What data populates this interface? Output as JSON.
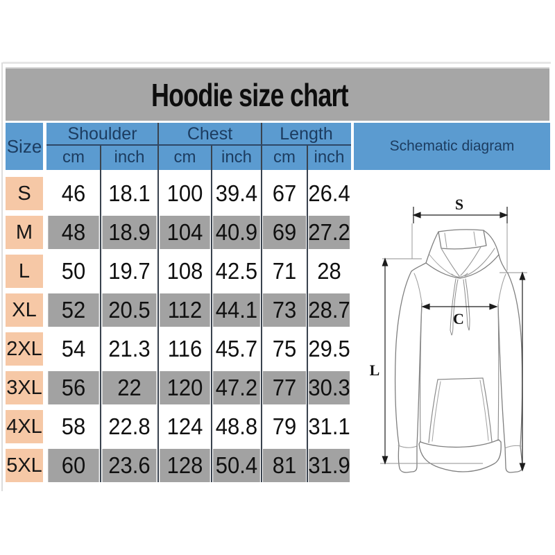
{
  "title": "Hoodie size chart",
  "table": {
    "size_header": "Size",
    "schematic_header": "Schematic diagram",
    "groups": [
      {
        "label": "Shoulder",
        "units": [
          "cm",
          "inch"
        ]
      },
      {
        "label": "Chest",
        "units": [
          "cm",
          "inch"
        ]
      },
      {
        "label": "Length",
        "units": [
          "cm",
          "inch"
        ]
      }
    ],
    "rows": [
      {
        "size": "S",
        "values": [
          "46",
          "18.1",
          "100",
          "39.4",
          "67",
          "26.4"
        ]
      },
      {
        "size": "M",
        "values": [
          "48",
          "18.9",
          "104",
          "40.9",
          "69",
          "27.2"
        ]
      },
      {
        "size": "L",
        "values": [
          "50",
          "19.7",
          "108",
          "42.5",
          "71",
          "28"
        ]
      },
      {
        "size": "XL",
        "values": [
          "52",
          "20.5",
          "112",
          "44.1",
          "73",
          "28.7"
        ]
      },
      {
        "size": "2XL",
        "values": [
          "54",
          "21.3",
          "116",
          "45.7",
          "75",
          "29.5"
        ]
      },
      {
        "size": "3XL",
        "values": [
          "56",
          "22",
          "120",
          "47.2",
          "77",
          "30.3"
        ]
      },
      {
        "size": "4XL",
        "values": [
          "58",
          "22.8",
          "124",
          "48.8",
          "79",
          "31.1"
        ]
      },
      {
        "size": "5XL",
        "values": [
          "60",
          "23.6",
          "128",
          "50.4",
          "81",
          "31.9"
        ]
      }
    ]
  },
  "diagram": {
    "shoulder_label": "S",
    "chest_label": "C",
    "length_label": "L"
  },
  "chart_data": {
    "type": "table",
    "title": "Hoodie size chart",
    "columns": [
      "Size",
      "Shoulder cm",
      "Shoulder inch",
      "Chest cm",
      "Chest inch",
      "Length cm",
      "Length inch"
    ],
    "rows": [
      [
        "S",
        46,
        18.1,
        100,
        39.4,
        67,
        26.4
      ],
      [
        "M",
        48,
        18.9,
        104,
        40.9,
        69,
        27.2
      ],
      [
        "L",
        50,
        19.7,
        108,
        42.5,
        71,
        28
      ],
      [
        "XL",
        52,
        20.5,
        112,
        44.1,
        73,
        28.7
      ],
      [
        "2XL",
        54,
        21.3,
        116,
        45.7,
        75,
        29.5
      ],
      [
        "3XL",
        56,
        22,
        120,
        47.2,
        77,
        30.3
      ],
      [
        "4XL",
        58,
        22.8,
        124,
        48.8,
        79,
        31.1
      ],
      [
        "5XL",
        60,
        23.6,
        128,
        50.4,
        81,
        31.9
      ]
    ]
  },
  "colors": {
    "header_blue": "#5b9bd0",
    "header_text_navy": "#1c3c60",
    "size_cell_peach": "#f6c8a6",
    "shaded_row_gray": "#a2a2a2",
    "banner_gray": "#a6a6a6"
  }
}
